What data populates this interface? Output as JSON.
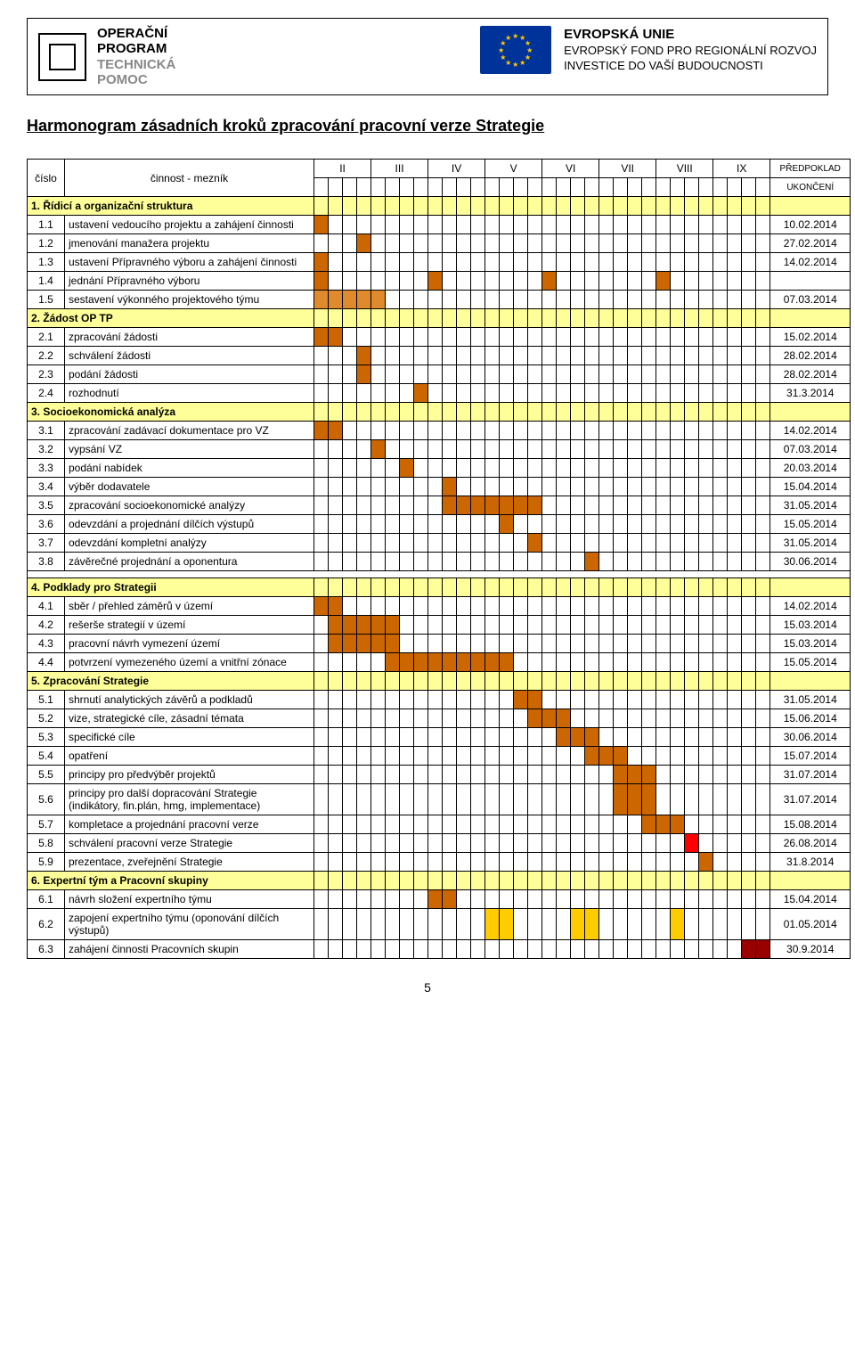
{
  "colors": {
    "sectionBg": "#ffff99",
    "orange": "#cc6600",
    "orange2": "#e08a2e",
    "gold": "#ffcc00",
    "red": "#ff0000",
    "darkred": "#990000",
    "white": "#ffffff",
    "gridBorder": "#000000"
  },
  "header": {
    "logoText1": "OPERAČNÍ",
    "logoText2": "PROGRAM",
    "logoText3": "TECHNICKÁ",
    "logoText4": "POMOC",
    "euTitle": "EVROPSKÁ UNIE",
    "euLine2": "EVROPSKÝ FOND PRO REGIONÁLNÍ ROZVOJ",
    "euLine3": "INVESTICE DO VAŠÍ BUDOUCNOSTI"
  },
  "title": "Harmonogram zásadních kroků zpracování pracovní verze Strategie",
  "columns": {
    "cislo": "číslo",
    "cinnost": "činnost - mezník",
    "months": [
      "II",
      "III",
      "IV",
      "V",
      "VI",
      "VII",
      "VIII",
      "IX"
    ],
    "predpoklad": "PŘEDPOKLAD",
    "ukonceni": "UKONČENÍ"
  },
  "monthSubCols": 4,
  "rows": [
    {
      "type": "section",
      "label": "1. Řídicí a organizační struktura"
    },
    {
      "num": "1.1",
      "label": "ustavení vedoucího projektu a zahájení činnosti",
      "date": "10.02.2014",
      "bars": [
        {
          "s": 0,
          "e": 0,
          "c": "orange"
        }
      ]
    },
    {
      "num": "1.2",
      "label": "jmenování manažera projektu",
      "date": "27.02.2014",
      "bars": [
        {
          "s": 3,
          "e": 3,
          "c": "orange"
        }
      ]
    },
    {
      "num": "1.3",
      "label": "ustavení Přípravného výboru a zahájení činnosti",
      "date": "14.02.2014",
      "bars": [
        {
          "s": 0,
          "e": 0,
          "c": "orange"
        }
      ]
    },
    {
      "num": "1.4",
      "label": "jednání Přípravného výboru",
      "date": "",
      "bars": [
        {
          "s": 0,
          "e": 0,
          "c": "orange"
        },
        {
          "s": 8,
          "e": 8,
          "c": "orange"
        },
        {
          "s": 16,
          "e": 16,
          "c": "orange"
        },
        {
          "s": 24,
          "e": 24,
          "c": "orange"
        }
      ]
    },
    {
      "num": "1.5",
      "label": "sestavení výkonného projektového týmu",
      "date": "07.03.2014",
      "bars": [
        {
          "s": 0,
          "e": 4,
          "c": "orange2"
        }
      ]
    },
    {
      "type": "section",
      "label": "2. Žádost OP TP"
    },
    {
      "num": "2.1",
      "label": "zpracování žádosti",
      "date": "15.02.2014",
      "bars": [
        {
          "s": 0,
          "e": 1,
          "c": "orange"
        }
      ]
    },
    {
      "num": "2.2",
      "label": "schválení žádosti",
      "date": "28.02.2014",
      "bars": [
        {
          "s": 3,
          "e": 3,
          "c": "orange"
        }
      ]
    },
    {
      "num": "2.3",
      "label": "podání žádosti",
      "date": "28.02.2014",
      "bars": [
        {
          "s": 3,
          "e": 3,
          "c": "orange"
        }
      ]
    },
    {
      "num": "2.4",
      "label": "rozhodnutí",
      "date": "31.3.2014",
      "bars": [
        {
          "s": 7,
          "e": 7,
          "c": "orange"
        }
      ]
    },
    {
      "type": "section",
      "label": "3. Socioekonomická analýza"
    },
    {
      "num": "3.1",
      "label": "zpracování zadávací dokumentace pro VZ",
      "date": "14.02.2014",
      "bars": [
        {
          "s": 0,
          "e": 1,
          "c": "orange"
        }
      ]
    },
    {
      "num": "3.2",
      "label": "vypsání VZ",
      "date": "07.03.2014",
      "bars": [
        {
          "s": 4,
          "e": 4,
          "c": "orange"
        }
      ]
    },
    {
      "num": "3.3",
      "label": "podání nabídek",
      "date": "20.03.2014",
      "bars": [
        {
          "s": 6,
          "e": 6,
          "c": "orange"
        }
      ]
    },
    {
      "num": "3.4",
      "label": "výběr dodavatele",
      "date": "15.04.2014",
      "bars": [
        {
          "s": 9,
          "e": 9,
          "c": "orange"
        }
      ]
    },
    {
      "num": "3.5",
      "label": "zpracování socioekonomické analýzy",
      "date": "31.05.2014",
      "bars": [
        {
          "s": 9,
          "e": 15,
          "c": "orange"
        }
      ]
    },
    {
      "num": "3.6",
      "label": "odevzdání a projednání dílčích výstupů",
      "date": "15.05.2014",
      "bars": [
        {
          "s": 13,
          "e": 13,
          "c": "orange"
        }
      ]
    },
    {
      "num": "3.7",
      "label": "odevzdání kompletní analýzy",
      "date": "31.05.2014",
      "bars": [
        {
          "s": 15,
          "e": 15,
          "c": "orange"
        }
      ]
    },
    {
      "num": "3.8",
      "label": "závěrečné projednání  a oponentura",
      "date": "30.06.2014",
      "bars": [
        {
          "s": 19,
          "e": 19,
          "c": "orange"
        }
      ]
    },
    {
      "type": "gap"
    },
    {
      "type": "section",
      "label": "4. Podklady pro Strategii"
    },
    {
      "num": "4.1",
      "label": "sběr / přehled záměrů v území",
      "date": "14.02.2014",
      "bars": [
        {
          "s": 0,
          "e": 1,
          "c": "orange"
        }
      ]
    },
    {
      "num": "4.2",
      "label": "rešerše strategií v území",
      "date": "15.03.2014",
      "bars": [
        {
          "s": 1,
          "e": 5,
          "c": "orange"
        }
      ]
    },
    {
      "num": "4.3",
      "label": "pracovní návrh vymezení území",
      "date": "15.03.2014",
      "bars": [
        {
          "s": 1,
          "e": 5,
          "c": "orange"
        }
      ]
    },
    {
      "num": "4.4",
      "label": "potvrzení vymezeného území a vnitřní zónace",
      "date": "15.05.2014",
      "bars": [
        {
          "s": 5,
          "e": 13,
          "c": "orange"
        }
      ]
    },
    {
      "type": "section",
      "label": "5. Zpracování Strategie"
    },
    {
      "num": "5.1",
      "label": "shrnutí analytických závěrů a podkladů",
      "date": "31.05.2014",
      "bars": [
        {
          "s": 14,
          "e": 15,
          "c": "orange"
        }
      ]
    },
    {
      "num": "5.2",
      "label": "vize, strategické cíle, zásadní témata",
      "date": "15.06.2014",
      "bars": [
        {
          "s": 15,
          "e": 17,
          "c": "orange"
        }
      ]
    },
    {
      "num": "5.3",
      "label": "specifické cíle",
      "date": "30.06.2014",
      "bars": [
        {
          "s": 17,
          "e": 19,
          "c": "orange"
        }
      ]
    },
    {
      "num": "5.4",
      "label": "opatření",
      "date": "15.07.2014",
      "bars": [
        {
          "s": 19,
          "e": 21,
          "c": "orange"
        }
      ]
    },
    {
      "num": "5.5",
      "label": "principy pro předvýběr projektů",
      "date": "31.07.2014",
      "bars": [
        {
          "s": 21,
          "e": 23,
          "c": "orange"
        }
      ]
    },
    {
      "num": "5.6",
      "label": "principy pro další dopracování Strategie (indikátory, fin.plán, hmg, implementace)",
      "date": "31.07.2014",
      "bars": [
        {
          "s": 21,
          "e": 23,
          "c": "orange"
        }
      ]
    },
    {
      "num": "5.7",
      "label": "kompletace a projednání pracovní verze",
      "date": "15.08.2014",
      "bars": [
        {
          "s": 23,
          "e": 25,
          "c": "orange"
        }
      ]
    },
    {
      "num": "5.8",
      "label": "schválení pracovní verze Strategie",
      "date": "26.08.2014",
      "bars": [
        {
          "s": 26,
          "e": 26,
          "c": "red"
        }
      ]
    },
    {
      "num": "5.9",
      "label": "prezentace, zveřejnění Strategie",
      "date": "31.8.2014",
      "bars": [
        {
          "s": 27,
          "e": 27,
          "c": "orange"
        }
      ]
    },
    {
      "type": "section",
      "label": "6. Expertní tým a Pracovní skupiny"
    },
    {
      "num": "6.1",
      "label": "návrh složení expertního týmu",
      "date": "15.04.2014",
      "bars": [
        {
          "s": 8,
          "e": 9,
          "c": "orange"
        }
      ]
    },
    {
      "num": "6.2",
      "label": "zapojení expertního týmu (oponování dílčích výstupů)",
      "date": "01.05.2014",
      "bars": [
        {
          "s": 12,
          "e": 13,
          "c": "gold"
        },
        {
          "s": 18,
          "e": 19,
          "c": "gold"
        },
        {
          "s": 25,
          "e": 25,
          "c": "gold"
        }
      ]
    },
    {
      "num": "6.3",
      "label": "zahájení činnosti Pracovních skupin",
      "date": "30.9.2014",
      "bars": [
        {
          "s": 30,
          "e": 31,
          "c": "darkred"
        }
      ]
    }
  ],
  "pageNumber": "5"
}
